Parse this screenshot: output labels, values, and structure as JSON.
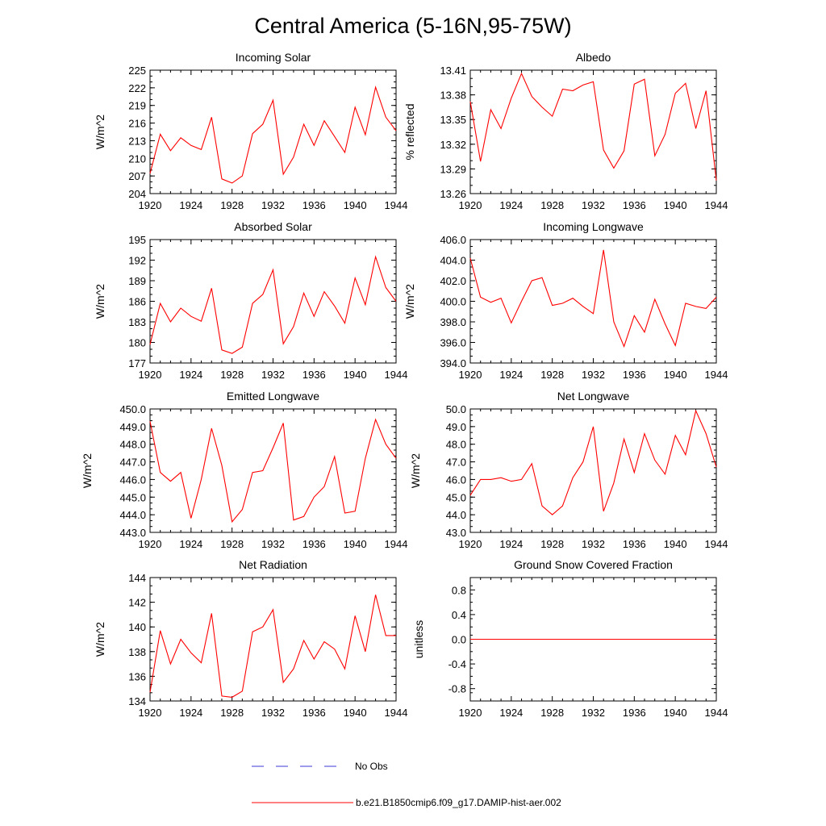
{
  "title": "Central America (5-16N,95-75W)",
  "colors": {
    "model": "#ff0000",
    "obs": "#3a3ad6",
    "axis": "#000000"
  },
  "legend": {
    "placement": "bottom-center",
    "entries": [
      {
        "label": "No Obs",
        "style": "dashed",
        "color": "#3a3ad6"
      },
      {
        "label": "b.e21.B1850cmip6.f09_g17.DAMIP-hist-aer.002",
        "style": "solid",
        "color": "#ff0000"
      }
    ]
  },
  "chart_data": [
    {
      "type": "line",
      "title": "Incoming Solar",
      "ylabel": "W/m^2",
      "xlim": [
        1920,
        1944
      ],
      "ylim": [
        204,
        225
      ],
      "xticks": [
        "1920",
        "1924",
        "1928",
        "1932",
        "1936",
        "1940",
        "1944"
      ],
      "yticks": [
        "204",
        "207",
        "210",
        "213",
        "216",
        "219",
        "222",
        "225"
      ],
      "grid": false,
      "series": [
        {
          "x": [
            1920,
            1921,
            1922,
            1923,
            1924,
            1925,
            1926,
            1927,
            1928,
            1929,
            1930,
            1931,
            1932,
            1933,
            1934,
            1935,
            1936,
            1937,
            1938,
            1939,
            1940,
            1941,
            1942,
            1943,
            1944
          ],
          "values": [
            207.4,
            214.1,
            211.3,
            213.5,
            212.2,
            211.5,
            217.0,
            206.5,
            205.8,
            207.0,
            214.2,
            215.8,
            219.9,
            207.3,
            210.2,
            215.8,
            212.2,
            216.4,
            213.7,
            211.0,
            218.7,
            214.0,
            222.1,
            217.0,
            214.7
          ]
        }
      ]
    },
    {
      "type": "line",
      "title": "Albedo",
      "ylabel": "% reflected",
      "xlim": [
        1920,
        1944
      ],
      "ylim": [
        13.26,
        13.41
      ],
      "xticks": [
        "1920",
        "1924",
        "1928",
        "1932",
        "1936",
        "1940",
        "1944"
      ],
      "yticks": [
        "13.26",
        "13.29",
        "13.32",
        "13.35",
        "13.38",
        "13.41"
      ],
      "grid": false,
      "series": [
        {
          "x": [
            1920,
            1921,
            1922,
            1923,
            1924,
            1925,
            1926,
            1927,
            1928,
            1929,
            1930,
            1931,
            1932,
            1933,
            1934,
            1935,
            1936,
            1937,
            1938,
            1939,
            1940,
            1941,
            1942,
            1943,
            1944
          ],
          "values": [
            13.372,
            13.299,
            13.362,
            13.339,
            13.376,
            13.406,
            13.378,
            13.365,
            13.354,
            13.387,
            13.385,
            13.392,
            13.396,
            13.313,
            13.291,
            13.312,
            13.393,
            13.399,
            13.306,
            13.332,
            13.382,
            13.394,
            13.339,
            13.385,
            13.276
          ]
        }
      ]
    },
    {
      "type": "line",
      "title": "Absorbed Solar",
      "ylabel": "W/m^2",
      "xlim": [
        1920,
        1944
      ],
      "ylim": [
        177,
        195
      ],
      "xticks": [
        "1920",
        "1924",
        "1928",
        "1932",
        "1936",
        "1940",
        "1944"
      ],
      "yticks": [
        "177",
        "180",
        "183",
        "186",
        "189",
        "192",
        "195"
      ],
      "grid": false,
      "series": [
        {
          "x": [
            1920,
            1921,
            1922,
            1923,
            1924,
            1925,
            1926,
            1927,
            1928,
            1929,
            1930,
            1931,
            1932,
            1933,
            1934,
            1935,
            1936,
            1937,
            1938,
            1939,
            1940,
            1941,
            1942,
            1943,
            1944
          ],
          "values": [
            179.7,
            185.7,
            183.0,
            185.0,
            183.8,
            183.1,
            187.9,
            178.9,
            178.4,
            179.3,
            185.7,
            187.0,
            190.6,
            179.8,
            182.3,
            187.2,
            183.8,
            187.4,
            185.3,
            182.8,
            189.4,
            185.5,
            192.5,
            188.0,
            186.0
          ]
        }
      ]
    },
    {
      "type": "line",
      "title": "Incoming Longwave",
      "ylabel": "W/m^2",
      "xlim": [
        1920,
        1944
      ],
      "ylim": [
        394.0,
        406.0
      ],
      "xticks": [
        "1920",
        "1924",
        "1928",
        "1932",
        "1936",
        "1940",
        "1944"
      ],
      "yticks": [
        "394.0",
        "396.0",
        "398.0",
        "400.0",
        "402.0",
        "404.0",
        "406.0"
      ],
      "grid": false,
      "series": [
        {
          "x": [
            1920,
            1921,
            1922,
            1923,
            1924,
            1925,
            1926,
            1927,
            1928,
            1929,
            1930,
            1931,
            1932,
            1933,
            1934,
            1935,
            1936,
            1937,
            1938,
            1939,
            1940,
            1941,
            1942,
            1943,
            1944
          ],
          "values": [
            404.2,
            400.4,
            399.9,
            400.3,
            397.9,
            400.0,
            402.0,
            402.3,
            399.6,
            399.8,
            400.3,
            399.5,
            398.8,
            405.0,
            398.0,
            395.6,
            398.6,
            397.0,
            400.2,
            397.8,
            395.7,
            399.8,
            399.5,
            399.3,
            400.4
          ]
        }
      ]
    },
    {
      "type": "line",
      "title": "Emitted Longwave",
      "ylabel": "W/m^2",
      "xlim": [
        1920,
        1944
      ],
      "ylim": [
        443.0,
        450.0
      ],
      "xticks": [
        "1920",
        "1924",
        "1928",
        "1932",
        "1936",
        "1940",
        "1944"
      ],
      "yticks": [
        "443.0",
        "444.0",
        "445.0",
        "446.0",
        "447.0",
        "448.0",
        "449.0",
        "450.0"
      ],
      "grid": false,
      "series": [
        {
          "x": [
            1920,
            1921,
            1922,
            1923,
            1924,
            1925,
            1926,
            1927,
            1928,
            1929,
            1930,
            1931,
            1932,
            1933,
            1934,
            1935,
            1936,
            1937,
            1938,
            1939,
            1940,
            1941,
            1942,
            1943,
            1944
          ],
          "values": [
            449.3,
            446.4,
            445.9,
            446.4,
            443.8,
            446.0,
            448.9,
            446.8,
            443.6,
            444.3,
            446.4,
            446.5,
            447.8,
            449.2,
            443.7,
            443.9,
            445.0,
            445.6,
            447.3,
            444.1,
            444.2,
            447.2,
            449.4,
            448.0,
            447.2
          ]
        }
      ]
    },
    {
      "type": "line",
      "title": "Net Longwave",
      "ylabel": "W/m^2",
      "xlim": [
        1920,
        1944
      ],
      "ylim": [
        43.0,
        50.0
      ],
      "xticks": [
        "1920",
        "1924",
        "1928",
        "1932",
        "1936",
        "1940",
        "1944"
      ],
      "yticks": [
        "43.0",
        "44.0",
        "45.0",
        "46.0",
        "47.0",
        "48.0",
        "49.0",
        "50.0"
      ],
      "grid": false,
      "series": [
        {
          "x": [
            1920,
            1921,
            1922,
            1923,
            1924,
            1925,
            1926,
            1927,
            1928,
            1929,
            1930,
            1931,
            1932,
            1933,
            1934,
            1935,
            1936,
            1937,
            1938,
            1939,
            1940,
            1941,
            1942,
            1943,
            1944
          ],
          "values": [
            45.1,
            46.0,
            46.0,
            46.1,
            45.9,
            46.0,
            46.9,
            44.5,
            44.0,
            44.5,
            46.1,
            47.0,
            49.0,
            44.2,
            45.8,
            48.3,
            46.4,
            48.6,
            47.1,
            46.3,
            48.5,
            47.4,
            49.9,
            48.6,
            46.7
          ]
        }
      ]
    },
    {
      "type": "line",
      "title": "Net Radiation",
      "ylabel": "W/m^2",
      "xlim": [
        1920,
        1944
      ],
      "ylim": [
        134,
        144
      ],
      "xticks": [
        "1920",
        "1924",
        "1928",
        "1932",
        "1936",
        "1940",
        "1944"
      ],
      "yticks": [
        "134",
        "136",
        "138",
        "140",
        "142",
        "144"
      ],
      "grid": false,
      "series": [
        {
          "x": [
            1920,
            1921,
            1922,
            1923,
            1924,
            1925,
            1926,
            1927,
            1928,
            1929,
            1930,
            1931,
            1932,
            1933,
            1934,
            1935,
            1936,
            1937,
            1938,
            1939,
            1940,
            1941,
            1942,
            1943,
            1944
          ],
          "values": [
            134.7,
            139.7,
            137.0,
            139.0,
            137.9,
            137.1,
            141.1,
            134.4,
            134.3,
            134.8,
            139.6,
            140.0,
            141.4,
            135.5,
            136.6,
            138.9,
            137.4,
            138.8,
            138.2,
            136.6,
            140.9,
            138.0,
            142.6,
            139.3,
            139.3
          ]
        }
      ]
    },
    {
      "type": "line",
      "title": "Ground Snow Covered Fraction",
      "ylabel": "unitless",
      "xlim": [
        1920,
        1944
      ],
      "ylim": [
        -1.0,
        1.0
      ],
      "xticks": [
        "1920",
        "1924",
        "1928",
        "1932",
        "1936",
        "1940",
        "1944"
      ],
      "yticks": [
        "-0.8",
        "-0.4",
        "0.0",
        "0.4",
        "0.8"
      ],
      "grid": false,
      "series": [
        {
          "x": [
            1920,
            1944
          ],
          "values": [
            0.0,
            0.0
          ]
        }
      ]
    }
  ]
}
